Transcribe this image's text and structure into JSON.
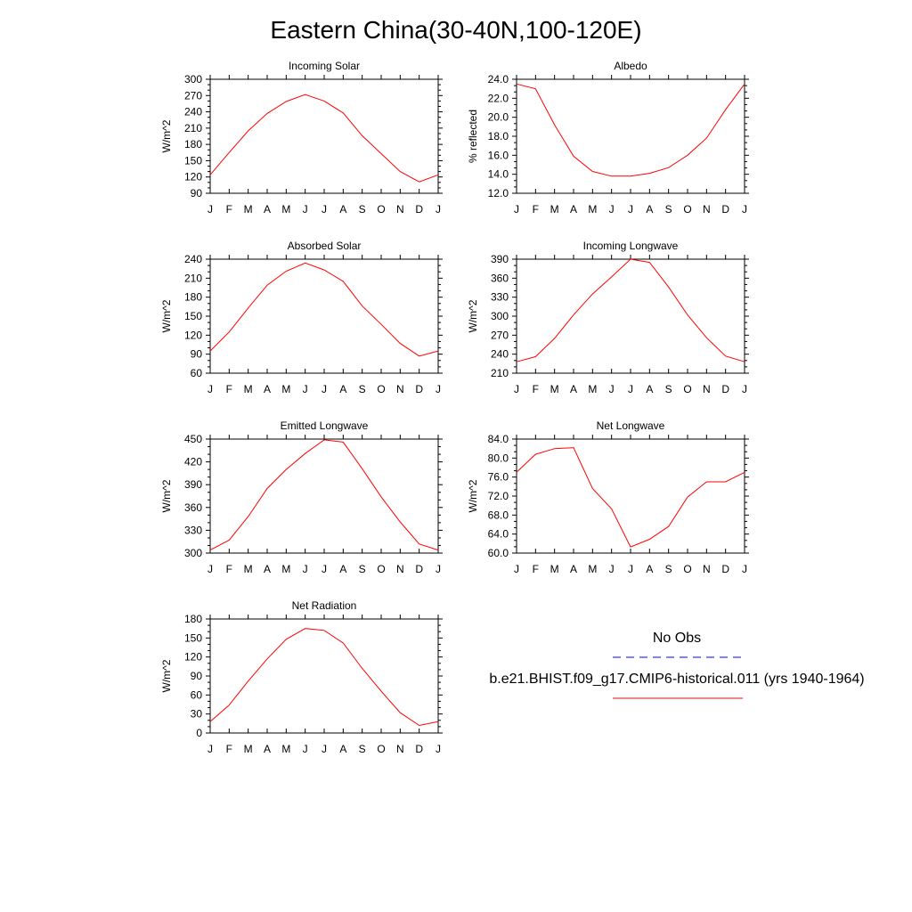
{
  "title": "Eastern China(30-40N,100-120E)",
  "colors": {
    "model": "#ff0000",
    "obs": "#0000ff"
  },
  "months": [
    "J",
    "F",
    "M",
    "A",
    "M",
    "J",
    "J",
    "A",
    "S",
    "O",
    "N",
    "D",
    "J"
  ],
  "legend": {
    "obs_label": "No Obs",
    "model_label": "b.e21.BHIST.f09_g17.CMIP6-historical.011 (yrs 1940-1964)"
  },
  "chart_data": [
    {
      "type": "line",
      "title": "Incoming Solar",
      "ylabel": "W/m^2",
      "ylim": [
        90,
        300
      ],
      "yticks": [
        "90",
        "120",
        "150",
        "180",
        "210",
        "240",
        "270",
        "300"
      ],
      "x": [
        "J",
        "F",
        "M",
        "A",
        "M",
        "J",
        "J",
        "A",
        "S",
        "O",
        "N",
        "D",
        "J"
      ],
      "series": [
        {
          "values": [
            124,
            165,
            205,
            237,
            259,
            272,
            260,
            238,
            196,
            163,
            130,
            111,
            124
          ]
        }
      ]
    },
    {
      "type": "line",
      "title": "Albedo",
      "ylabel": "% reflected",
      "ylim": [
        12,
        24
      ],
      "yticks": [
        "12.0",
        "14.0",
        "16.0",
        "18.0",
        "20.0",
        "22.0",
        "24.0"
      ],
      "x": [
        "J",
        "F",
        "M",
        "A",
        "M",
        "J",
        "J",
        "A",
        "S",
        "O",
        "N",
        "D",
        "J"
      ],
      "series": [
        {
          "values": [
            23.5,
            23.0,
            19.2,
            15.9,
            14.3,
            13.8,
            13.8,
            14.1,
            14.7,
            16.0,
            17.8,
            20.8,
            23.5
          ]
        }
      ]
    },
    {
      "type": "line",
      "title": "Absorbed Solar",
      "ylabel": "W/m^2",
      "ylim": [
        60,
        240
      ],
      "yticks": [
        "60",
        "90",
        "120",
        "150",
        "180",
        "210",
        "240"
      ],
      "x": [
        "J",
        "F",
        "M",
        "A",
        "M",
        "J",
        "J",
        "A",
        "S",
        "O",
        "N",
        "D",
        "J"
      ],
      "series": [
        {
          "values": [
            95,
            125,
            163,
            199,
            221,
            234,
            223,
            205,
            166,
            137,
            107,
            87,
            95
          ]
        }
      ]
    },
    {
      "type": "line",
      "title": "Incoming Longwave",
      "ylabel": "W/m^2",
      "ylim": [
        210,
        390
      ],
      "yticks": [
        "210",
        "240",
        "270",
        "300",
        "330",
        "360",
        "390"
      ],
      "x": [
        "J",
        "F",
        "M",
        "A",
        "M",
        "J",
        "J",
        "A",
        "S",
        "O",
        "N",
        "D",
        "J"
      ],
      "series": [
        {
          "values": [
            228,
            236,
            265,
            302,
            335,
            362,
            390,
            385,
            346,
            302,
            266,
            237,
            228
          ]
        }
      ]
    },
    {
      "type": "line",
      "title": "Emitted Longwave",
      "ylabel": "W/m^2",
      "ylim": [
        300,
        450
      ],
      "yticks": [
        "300",
        "330",
        "360",
        "390",
        "420",
        "450"
      ],
      "x": [
        "J",
        "F",
        "M",
        "A",
        "M",
        "J",
        "J",
        "A",
        "S",
        "O",
        "N",
        "D",
        "J"
      ],
      "series": [
        {
          "values": [
            304,
            317,
            348,
            385,
            410,
            431,
            449,
            446,
            411,
            374,
            341,
            312,
            304
          ]
        }
      ]
    },
    {
      "type": "line",
      "title": "Net Longwave",
      "ylabel": "W/m^2",
      "ylim": [
        60,
        84
      ],
      "yticks": [
        "60.0",
        "64.0",
        "68.0",
        "72.0",
        "76.0",
        "80.0",
        "84.0"
      ],
      "x": [
        "J",
        "F",
        "M",
        "A",
        "M",
        "J",
        "J",
        "A",
        "S",
        "O",
        "N",
        "D",
        "J"
      ],
      "series": [
        {
          "values": [
            77.0,
            80.8,
            82.0,
            82.2,
            73.6,
            69.3,
            61.3,
            62.9,
            65.6,
            71.8,
            75.0,
            75.0,
            77.0
          ]
        }
      ]
    },
    {
      "type": "line",
      "title": "Net Radiation",
      "ylabel": "W/m^2",
      "ylim": [
        0,
        180
      ],
      "yticks": [
        "0",
        "30",
        "60",
        "90",
        "120",
        "150",
        "180"
      ],
      "x": [
        "J",
        "F",
        "M",
        "A",
        "M",
        "J",
        "J",
        "A",
        "S",
        "O",
        "N",
        "D",
        "J"
      ],
      "series": [
        {
          "values": [
            18,
            44,
            82,
            117,
            148,
            165,
            162,
            142,
            102,
            66,
            32,
            12,
            18
          ]
        }
      ]
    }
  ]
}
